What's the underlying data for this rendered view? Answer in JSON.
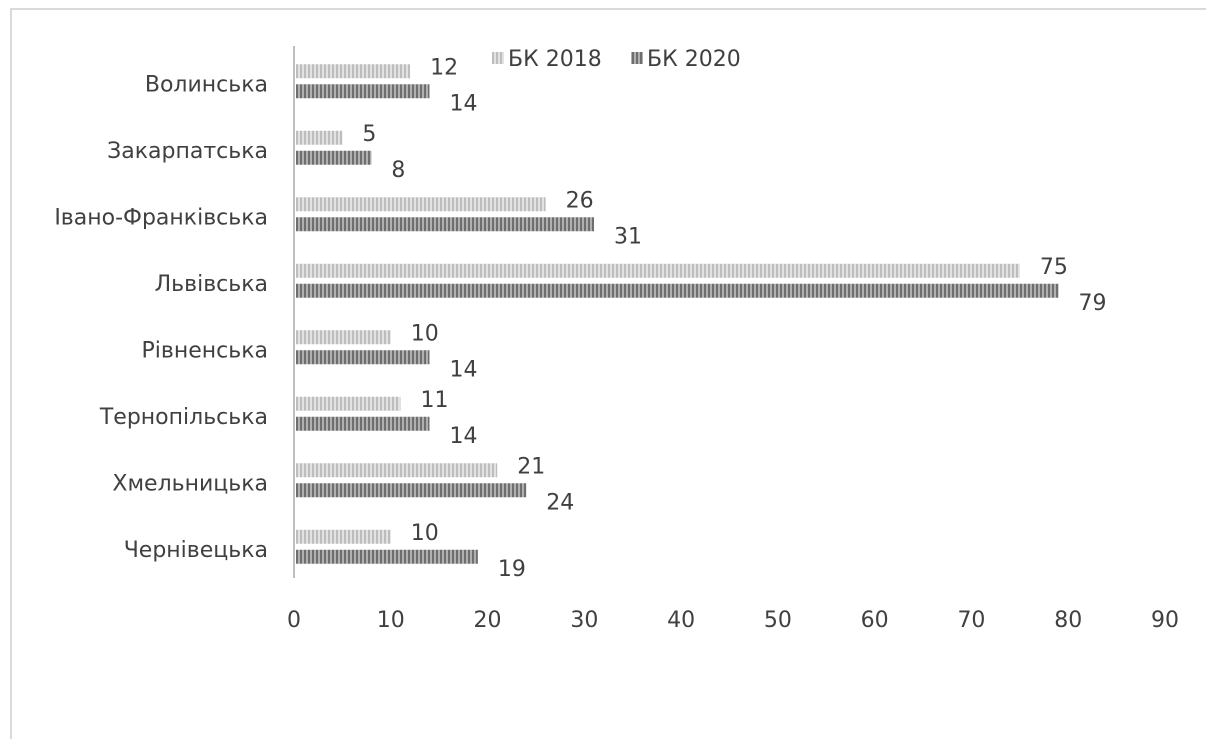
{
  "chart_data": {
    "type": "bar",
    "orientation": "horizontal",
    "categories": [
      "Волинська",
      "Закарпатська",
      "Івано-Франківська",
      "Львівська",
      "Рівненська",
      "Тернопільська",
      "Хмельницька",
      "Чернівецька"
    ],
    "series": [
      {
        "name": "БК 2018",
        "values": [
          12,
          5,
          26,
          75,
          10,
          11,
          21,
          10
        ],
        "color": "#cfcfcf",
        "pattern": "light vertical stripes"
      },
      {
        "name": "БК 2020",
        "values": [
          14,
          8,
          31,
          79,
          14,
          14,
          24,
          19
        ],
        "color": "#8c8c8c",
        "pattern": "dark vertical stripes"
      }
    ],
    "xlim": [
      0,
      90
    ],
    "x_ticks": [
      "0",
      "10",
      "20",
      "30",
      "40",
      "50",
      "60",
      "70",
      "80",
      "90"
    ],
    "title": "",
    "xlabel": "",
    "ylabel": "",
    "grid": false,
    "legend_position": "top"
  }
}
